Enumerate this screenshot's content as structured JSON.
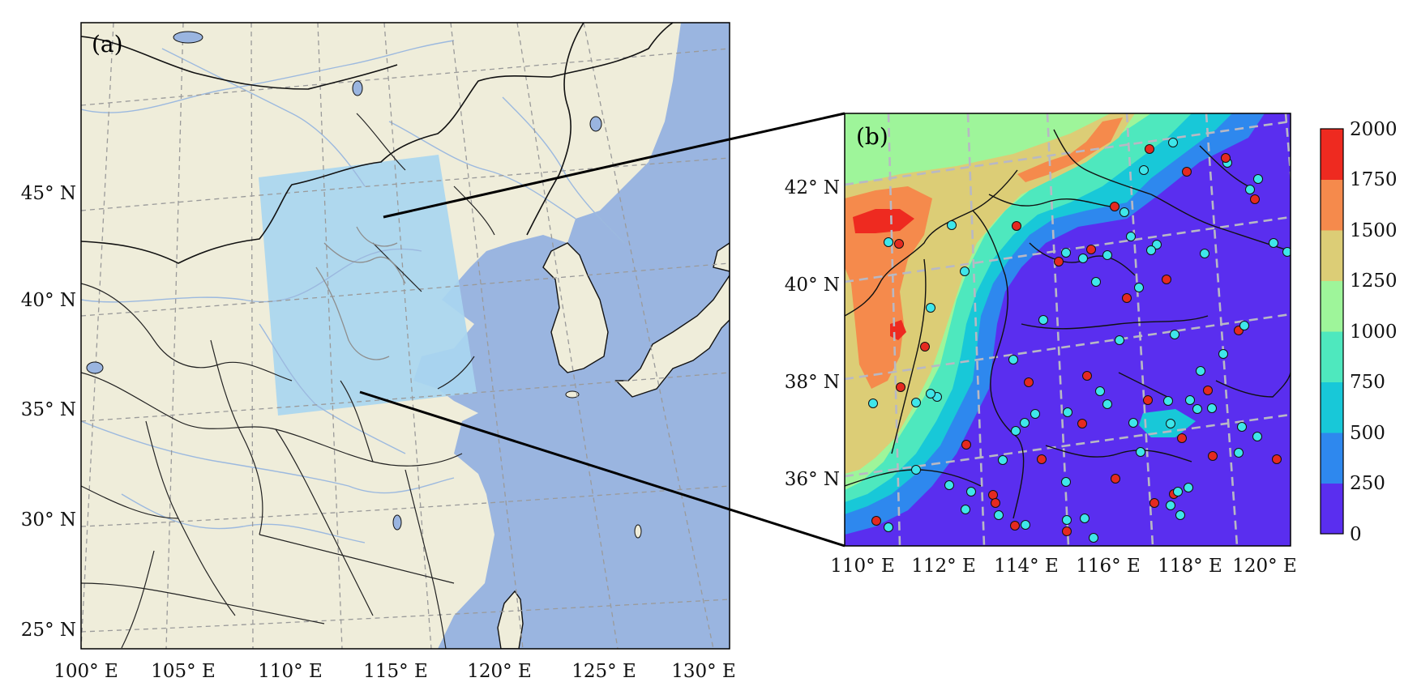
{
  "panel_a": {
    "label": "(a)",
    "y_ticks": [
      "45° N",
      "40° N",
      "35° N",
      "30° N",
      "25° N"
    ],
    "x_ticks": [
      "100° E",
      "105° E",
      "110° E",
      "115° E",
      "120° E",
      "125° E",
      "130° E"
    ],
    "colors": {
      "land": "#efedda",
      "ocean": "#9ab5e0",
      "lake": "#9ab5e0",
      "domain": "#a9d6f0"
    },
    "inset_domain": {
      "description_ref": "study domain shown in panel (b)",
      "lon_range": [
        110,
        121
      ],
      "lat_range": [
        35,
        43
      ]
    }
  },
  "panel_b": {
    "label": "(b)",
    "y_ticks": [
      "42° N",
      "40° N",
      "38° N",
      "36° N"
    ],
    "x_ticks": [
      "110° E",
      "112° E",
      "114° E",
      "116° E",
      "118° E",
      "120° E"
    ],
    "colorbar": {
      "ticks": [
        "2000",
        "1750",
        "1500",
        "1250",
        "1000",
        "750",
        "500",
        "250",
        "0"
      ],
      "levels": [
        0,
        250,
        500,
        750,
        1000,
        1250,
        1500,
        1750,
        2000
      ],
      "colors": [
        "#5a2eef",
        "#2e88ee",
        "#18c8d8",
        "#4ee8be",
        "#9ef59a",
        "#dccd76",
        "#f58a4c",
        "#ee2a20"
      ]
    },
    "station_marker_colors": {
      "red": "#e52a20",
      "cyan": "#3fe6ea"
    }
  }
}
